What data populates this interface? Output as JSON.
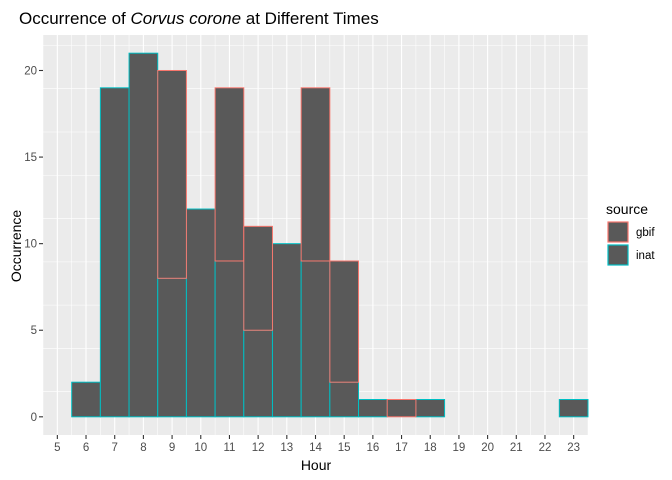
{
  "chart_data": {
    "type": "bar",
    "title_prefix": "Occurrence of ",
    "title_italic": "Corvus corone",
    "title_suffix": " at Different Times",
    "xlabel": "Hour",
    "ylabel": "Occurrence",
    "xlim": [
      4.5,
      23.5
    ],
    "ylim": [
      -1.05,
      22.05
    ],
    "x_ticks": [
      "5",
      "6",
      "7",
      "8",
      "9",
      "10",
      "11",
      "12",
      "13",
      "14",
      "15",
      "16",
      "17",
      "18",
      "19",
      "20",
      "21",
      "22",
      "23"
    ],
    "y_ticks": [
      "0",
      "5",
      "10",
      "15",
      "20"
    ],
    "grid": true,
    "legend_title": "source",
    "legend_position": "right",
    "fill_color": "#595959",
    "background_color": "#ebebeb",
    "series": [
      {
        "name": "gbif",
        "color": "#F8766D",
        "x": [
          6,
          7,
          8,
          9,
          10,
          11,
          12,
          13,
          14,
          15,
          16,
          17,
          18,
          19,
          20,
          21,
          22,
          23
        ],
        "values": [
          0,
          0,
          0,
          12,
          0,
          10,
          6,
          0,
          10,
          7,
          0,
          1,
          0,
          0,
          0,
          0,
          0,
          0
        ]
      },
      {
        "name": "inat",
        "color": "#00BFC4",
        "x": [
          6,
          7,
          8,
          9,
          10,
          11,
          12,
          13,
          14,
          15,
          16,
          17,
          18,
          19,
          20,
          21,
          22,
          23
        ],
        "values": [
          2,
          19,
          21,
          8,
          12,
          9,
          5,
          10,
          9,
          2,
          1,
          0,
          1,
          0,
          0,
          0,
          0,
          1
        ]
      }
    ]
  }
}
